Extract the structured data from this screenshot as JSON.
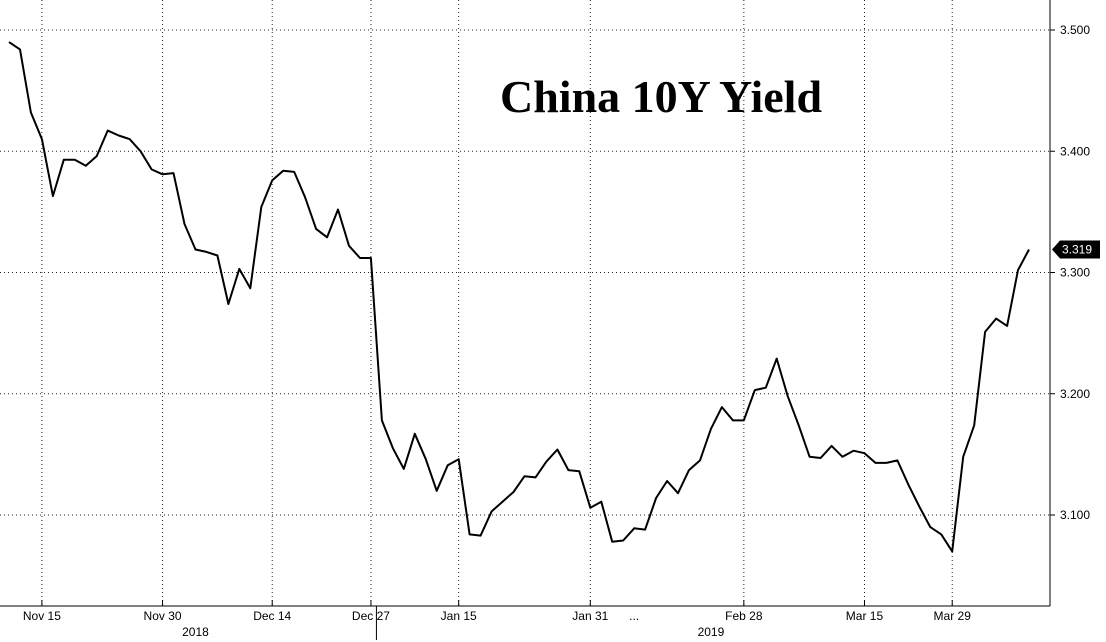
{
  "chart_data": {
    "type": "line",
    "title": "China 10Y Yield",
    "xlabel": "",
    "ylabel": "",
    "ylim": [
      3.04,
      3.52
    ],
    "y_ticks": [
      {
        "label": "3.100",
        "value": 3.1
      },
      {
        "label": "3.200",
        "value": 3.2
      },
      {
        "label": "3.300",
        "value": 3.3
      },
      {
        "label": "3.400",
        "value": 3.4
      },
      {
        "label": "3.500",
        "value": 3.5
      }
    ],
    "x_ticks": [
      {
        "label": "Nov 15",
        "index": 3
      },
      {
        "label": "Nov 30",
        "index": 14
      },
      {
        "label": "Dec 14",
        "index": 24
      },
      {
        "label": "Dec 27",
        "index": 33
      },
      {
        "label": "Jan 15",
        "index": 41
      },
      {
        "label": "Jan 31",
        "index": 53
      },
      {
        "label": "Feb 28",
        "index": 67
      },
      {
        "label": "Mar 15",
        "index": 78
      },
      {
        "label": "Mar 29",
        "index": 86
      }
    ],
    "year_labels": [
      {
        "label": "2018",
        "index": 17
      },
      {
        "label": "2019",
        "index": 64
      }
    ],
    "year_separator_index": 33.5,
    "gap_marker": {
      "label": "...",
      "index": 57
    },
    "grid": true,
    "series": [
      {
        "values": [
          3.49,
          3.484,
          3.432,
          3.41,
          3.363,
          3.393,
          3.393,
          3.388,
          3.396,
          3.417,
          3.413,
          3.41,
          3.4,
          3.385,
          3.381,
          3.382,
          3.34,
          3.319,
          3.317,
          3.314,
          3.274,
          3.303,
          3.287,
          3.354,
          3.376,
          3.384,
          3.383,
          3.362,
          3.336,
          3.329,
          3.352,
          3.322,
          3.312,
          3.312,
          3.178,
          3.155,
          3.138,
          3.167,
          3.146,
          3.12,
          3.141,
          3.146,
          3.084,
          3.083,
          3.103,
          3.111,
          3.119,
          3.132,
          3.131,
          3.144,
          3.154,
          3.137,
          3.136,
          3.106,
          3.111,
          3.078,
          3.079,
          3.089,
          3.088,
          3.114,
          3.128,
          3.118,
          3.137,
          3.145,
          3.171,
          3.189,
          3.178,
          3.178,
          3.203,
          3.205,
          3.229,
          3.198,
          3.174,
          3.148,
          3.147,
          3.157,
          3.148,
          3.153,
          3.151,
          3.143,
          3.143,
          3.145,
          3.125,
          3.107,
          3.09,
          3.084,
          3.07,
          3.148,
          3.174,
          3.251,
          3.262,
          3.256,
          3.302,
          3.319
        ]
      }
    ],
    "last_value_label": "3.319"
  }
}
